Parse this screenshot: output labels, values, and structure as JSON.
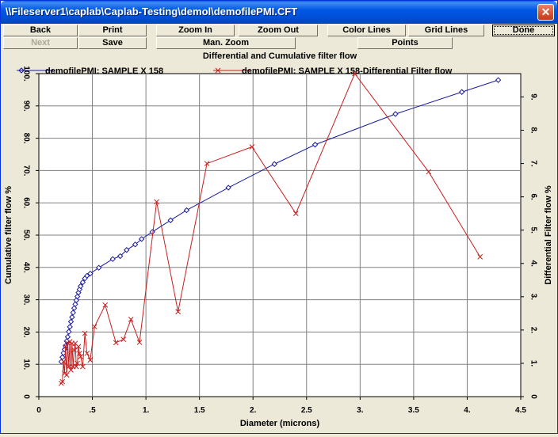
{
  "window": {
    "title": "\\\\Fileserver1\\caplab\\Caplab-Testing\\demol\\demofilePMI.CFT"
  },
  "toolbar": {
    "back": "Back",
    "print": "Print",
    "zoom_in": "Zoom In",
    "zoom_out": "Zoom Out",
    "color_lines": "Color Lines",
    "grid_lines": "Grid Lines",
    "done": "Done",
    "next": "Next",
    "save": "Save",
    "man_zoom": "Man. Zoom",
    "points": "Points"
  },
  "colors": {
    "series1": "#1a1aa0",
    "series2": "#c81e1e",
    "window_bg": "#ece9d8"
  },
  "chart_data": {
    "type": "line",
    "title": "Differential and Cumulative filter flow",
    "xlabel": "Diameter (microns)",
    "ylabel": "Cumulative filter flow %",
    "y2label": "Differential Filter flow %",
    "xlim": [
      0,
      4.5
    ],
    "ylim": [
      0,
      100
    ],
    "y2lim": [
      0,
      9.7
    ],
    "grid": true,
    "legend_position": "top",
    "x_ticks": [
      "0",
      ".5",
      "1.",
      "1.5",
      "2.",
      "2.5",
      "3.",
      "3.5",
      "4.",
      "4.5"
    ],
    "y_ticks": [
      "0",
      "10.",
      "20.",
      "30.",
      "40.",
      "50.",
      "60.",
      "70.",
      "80.",
      "90.",
      "100."
    ],
    "y2_ticks": [
      "0",
      "1.",
      "2.",
      "3.",
      "4.",
      "5.",
      "6.",
      "7.",
      "8.",
      "9."
    ],
    "series": [
      {
        "name": "demofilePMI: SAMPLE X 158",
        "axis": "left",
        "marker": "diamond",
        "x": [
          0.21,
          0.22,
          0.23,
          0.24,
          0.25,
          0.26,
          0.27,
          0.28,
          0.29,
          0.3,
          0.31,
          0.32,
          0.33,
          0.34,
          0.35,
          0.36,
          0.37,
          0.38,
          0.39,
          0.41,
          0.43,
          0.45,
          0.48,
          0.56,
          0.69,
          0.76,
          0.82,
          0.9,
          0.96,
          1.06,
          1.23,
          1.38,
          1.77,
          2.2,
          2.58,
          3.33,
          3.95,
          4.29
        ],
        "y": [
          10.8,
          12.2,
          13.5,
          14.6,
          15.7,
          17.2,
          18.5,
          20.1,
          21.6,
          23.2,
          24.6,
          26.0,
          27.4,
          28.6,
          29.8,
          31.0,
          32.2,
          33.2,
          34.2,
          35.4,
          36.6,
          37.4,
          38.1,
          39.9,
          42.6,
          43.5,
          45.4,
          47.1,
          48.8,
          51.0,
          54.6,
          57.7,
          64.7,
          72.0,
          78.0,
          87.5,
          94.3,
          98.0
        ]
      },
      {
        "name": "demofilePMI: SAMPLE X 158-Differential Filter flow",
        "axis": "right",
        "marker": "x",
        "x": [
          0.21,
          0.22,
          0.23,
          0.24,
          0.25,
          0.26,
          0.27,
          0.28,
          0.29,
          0.3,
          0.31,
          0.32,
          0.33,
          0.34,
          0.35,
          0.36,
          0.37,
          0.38,
          0.39,
          0.41,
          0.43,
          0.45,
          0.48,
          0.52,
          0.62,
          0.72,
          0.79,
          0.86,
          0.94,
          1.1,
          1.3,
          1.57,
          1.99,
          2.4,
          2.95,
          3.64,
          4.12
        ],
        "y": [
          0.4,
          0.45,
          1.05,
          0.7,
          1.5,
          0.65,
          1.6,
          0.9,
          1.65,
          0.8,
          1.6,
          0.9,
          1.4,
          1.6,
          0.9,
          1.0,
          1.5,
          1.3,
          1.2,
          0.9,
          1.9,
          1.3,
          1.1,
          2.1,
          2.75,
          1.62,
          1.72,
          2.32,
          1.63,
          5.85,
          2.55,
          7.0,
          7.5,
          5.5,
          9.7,
          6.75,
          4.2
        ]
      }
    ]
  }
}
